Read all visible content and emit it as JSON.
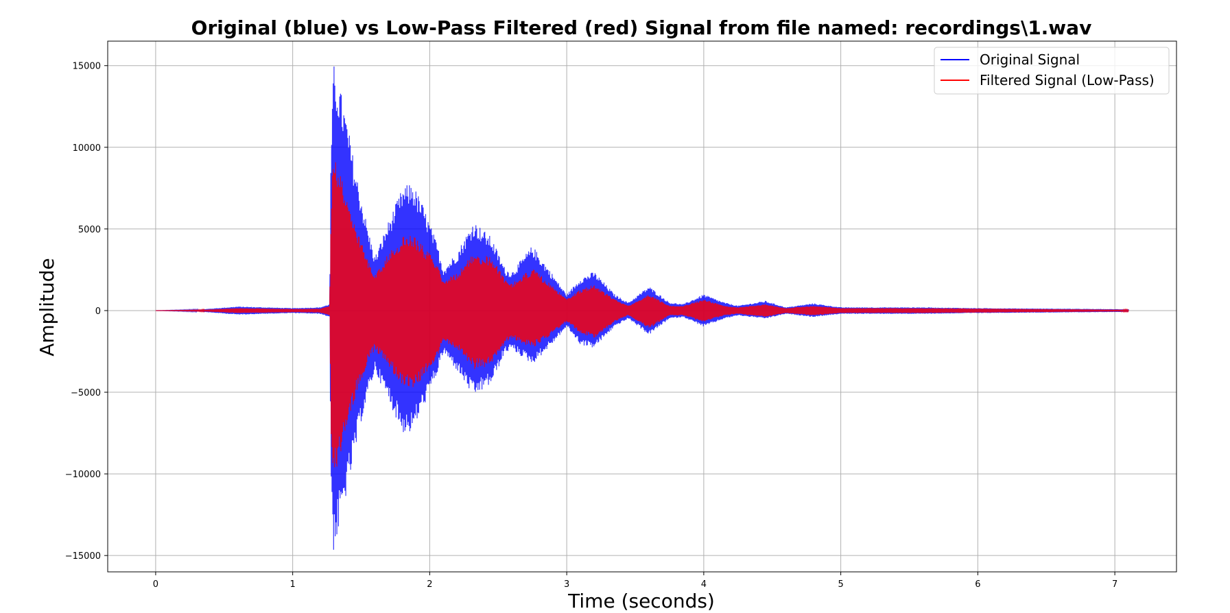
{
  "chart_data": {
    "type": "line",
    "title": "Original (blue) vs Low-Pass Filtered (red) Signal from file named: recordings\\1.wav",
    "xlabel": "Time (seconds)",
    "ylabel": "Amplitude",
    "xlim": [
      -0.35,
      7.45
    ],
    "ylim": [
      -16000,
      16500
    ],
    "xticks": [
      0,
      1,
      2,
      3,
      4,
      5,
      6,
      7
    ],
    "yticks": [
      -15000,
      -10000,
      -5000,
      0,
      5000,
      10000,
      15000
    ],
    "ytick_labels": [
      "−15000",
      "−10000",
      "−5000",
      "0",
      "5000",
      "10000",
      "15000"
    ],
    "grid": true,
    "legend_position": "top-right",
    "series": [
      {
        "name": "Original Signal",
        "color": "#0000ff",
        "envelope_x": [
          0,
          0.3,
          0.6,
          1.0,
          1.2,
          1.27,
          1.28,
          1.3,
          1.35,
          1.4,
          1.45,
          1.5,
          1.55,
          1.6,
          1.7,
          1.8,
          1.87,
          1.95,
          2.05,
          2.1,
          2.2,
          2.32,
          2.45,
          2.55,
          2.6,
          2.75,
          2.9,
          3.0,
          3.1,
          3.2,
          3.35,
          3.45,
          3.6,
          3.75,
          3.85,
          4.0,
          4.15,
          4.25,
          4.45,
          4.6,
          4.8,
          5.0,
          5.6,
          6.0,
          6.5,
          7.1
        ],
        "envelope_upper": [
          0,
          50,
          250,
          150,
          200,
          400,
          10500,
          15100,
          13500,
          11500,
          9000,
          7000,
          5000,
          3300,
          5500,
          7500,
          7900,
          6500,
          4200,
          2600,
          3600,
          5500,
          4500,
          2600,
          2400,
          4000,
          2200,
          1000,
          2000,
          2400,
          1000,
          500,
          1500,
          500,
          400,
          1000,
          500,
          300,
          600,
          200,
          450,
          200,
          200,
          150,
          120,
          80
        ],
        "envelope_lower": [
          0,
          -50,
          -250,
          -150,
          -200,
          -400,
          -11000,
          -15000,
          -13000,
          -11000,
          -9000,
          -6800,
          -5200,
          -3700,
          -5500,
          -7500,
          -7500,
          -6000,
          -4000,
          -2600,
          -3700,
          -5300,
          -4500,
          -2600,
          -2400,
          -3300,
          -2000,
          -1000,
          -2100,
          -2300,
          -1000,
          -500,
          -1500,
          -500,
          -400,
          -1000,
          -500,
          -300,
          -500,
          -200,
          -400,
          -200,
          -200,
          -150,
          -120,
          -80
        ]
      },
      {
        "name": "Filtered Signal (Low-Pass)",
        "color": "#ff0000",
        "envelope_x": [
          0,
          0.3,
          0.6,
          1.0,
          1.2,
          1.27,
          1.28,
          1.3,
          1.35,
          1.4,
          1.45,
          1.5,
          1.55,
          1.6,
          1.7,
          1.8,
          1.87,
          1.95,
          2.05,
          2.1,
          2.2,
          2.32,
          2.45,
          2.55,
          2.6,
          2.75,
          2.9,
          3.0,
          3.1,
          3.2,
          3.35,
          3.45,
          3.6,
          3.75,
          3.85,
          4.0,
          4.15,
          4.25,
          4.45,
          4.6,
          4.8,
          5.0,
          5.6,
          6.0,
          6.5,
          7.1
        ],
        "envelope_upper": [
          0,
          30,
          150,
          100,
          120,
          300,
          7000,
          9800,
          8500,
          6800,
          5500,
          4200,
          3100,
          2300,
          3500,
          4500,
          4800,
          4000,
          3000,
          1900,
          2300,
          3500,
          3300,
          2000,
          1700,
          2600,
          1500,
          700,
          1300,
          1600,
          700,
          300,
          1000,
          300,
          300,
          700,
          300,
          200,
          400,
          150,
          300,
          150,
          150,
          120,
          90,
          50
        ],
        "envelope_lower": [
          0,
          -30,
          -150,
          -100,
          -120,
          -300,
          -7500,
          -10500,
          -9000,
          -7000,
          -5500,
          -4300,
          -3200,
          -2400,
          -3500,
          -4500,
          -4800,
          -4200,
          -3000,
          -1900,
          -2400,
          -3600,
          -3400,
          -2000,
          -1700,
          -2300,
          -1400,
          -700,
          -1400,
          -1700,
          -700,
          -300,
          -1100,
          -300,
          -300,
          -700,
          -300,
          -200,
          -400,
          -150,
          -300,
          -150,
          -150,
          -120,
          -90,
          -50
        ]
      }
    ]
  }
}
